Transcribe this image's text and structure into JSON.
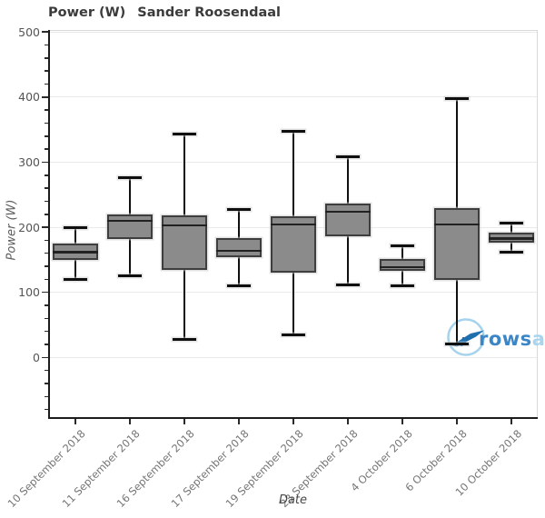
{
  "title": {
    "metric": "Power (W)",
    "person": "Sander Roosendaal"
  },
  "axes": {
    "xlabel": "Date",
    "ylabel": "Power (W)"
  },
  "watermark": {
    "text_primary": "rows",
    "text_secondary": "an"
  },
  "chart_data": {
    "type": "box",
    "title": "Power (W)  Sander Roosendaal",
    "xlabel": "Date",
    "ylabel": "Power (W)",
    "ylim": [
      -93,
      503
    ],
    "yticks_major": [
      0,
      100,
      200,
      300,
      400,
      500
    ],
    "ytick_minor_step": 20,
    "grid": "horizontal-major",
    "legend": "none",
    "categories": [
      "10 September 2018",
      "11 September 2018",
      "16 September 2018",
      "17 September 2018",
      "19 September 2018",
      "23 September 2018",
      "4 October 2018",
      "6 October 2018",
      "10 October 2018"
    ],
    "series": [
      {
        "label": "10 September 2018",
        "low": 120,
        "q1": 150,
        "median": 162,
        "q3": 175,
        "high": 200
      },
      {
        "label": "11 September 2018",
        "low": 125,
        "q1": 182,
        "median": 210,
        "q3": 220,
        "high": 276
      },
      {
        "label": "16 September 2018",
        "low": 28,
        "q1": 134,
        "median": 203,
        "q3": 218,
        "high": 343
      },
      {
        "label": "17 September 2018",
        "low": 110,
        "q1": 154,
        "median": 164,
        "q3": 183,
        "high": 228
      },
      {
        "label": "19 September 2018",
        "low": 35,
        "q1": 130,
        "median": 204,
        "q3": 217,
        "high": 347
      },
      {
        "label": "23 September 2018",
        "low": 112,
        "q1": 186,
        "median": 224,
        "q3": 236,
        "high": 308
      },
      {
        "label": "4 October 2018",
        "low": 110,
        "q1": 133,
        "median": 139,
        "q3": 151,
        "high": 172
      },
      {
        "label": "6 October 2018",
        "low": 21,
        "q1": 119,
        "median": 204,
        "q3": 230,
        "high": 398
      },
      {
        "label": "10 October 2018",
        "low": 162,
        "q1": 176,
        "median": 183,
        "q3": 192,
        "high": 206
      }
    ],
    "colors": {
      "box_fill": "#8b8b8b",
      "box_border": "#3e3e3e",
      "median": "#222222",
      "whisker": "#0f0f0f",
      "grid": "#e9e9e9",
      "axis": "#1c1c1c",
      "tick_label_y": "#555555",
      "tick_label_x": "#757575",
      "title": "#3b3b3b",
      "watermark_dark": "#3d86c6",
      "watermark_light": "#a9d5ee"
    }
  }
}
